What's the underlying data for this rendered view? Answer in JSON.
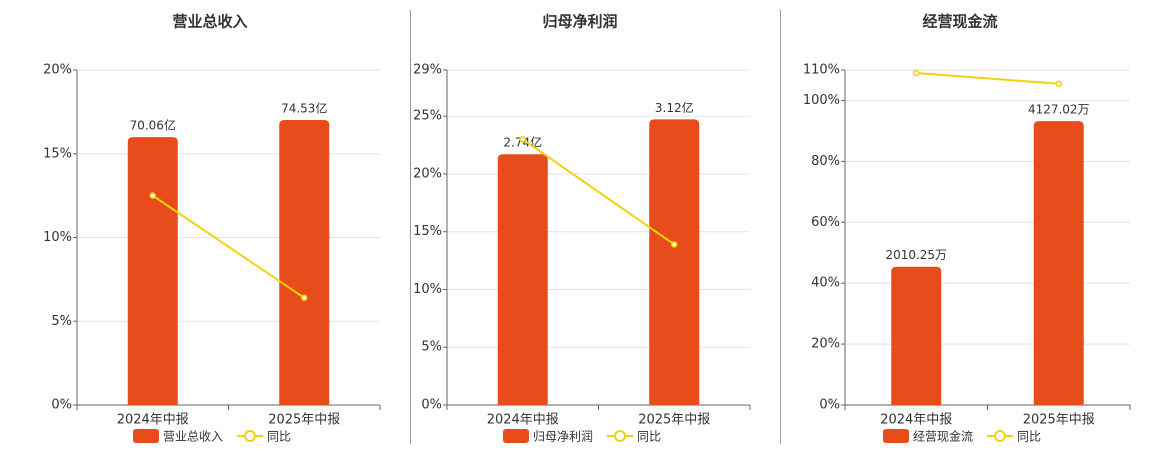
{
  "chart_data": [
    {
      "type": "bar",
      "title": "营业总收入",
      "categories": [
        "2024年中报",
        "2025年中报"
      ],
      "series": [
        {
          "name": "营业总收入",
          "color": "#e84c1a",
          "values": [
            70.06,
            74.53
          ],
          "value_labels": [
            "70.06亿",
            "74.53亿"
          ],
          "axis": "y2"
        },
        {
          "name": "同比",
          "color": "#f2d20a",
          "type": "line",
          "values": [
            12.5,
            6.4
          ]
        }
      ],
      "ylim": [
        0,
        20
      ],
      "yticks": [
        {
          "value": 0,
          "label": "0%"
        },
        {
          "value": 5,
          "label": "5%"
        },
        {
          "value": 10,
          "label": "10%"
        },
        {
          "value": 15,
          "label": "15%"
        },
        {
          "value": 20,
          "label": "20%"
        }
      ],
      "y2lim": [
        0,
        87.6
      ],
      "grid": true
    },
    {
      "type": "bar",
      "title": "归母净利润",
      "categories": [
        "2024年中报",
        "2025年中报"
      ],
      "series": [
        {
          "name": "归母净利润",
          "color": "#e84c1a",
          "values": [
            2.74,
            3.12
          ],
          "value_labels": [
            "2.74亿",
            "3.12亿"
          ],
          "axis": "y2"
        },
        {
          "name": "同比",
          "color": "#f2d20a",
          "type": "line",
          "values": [
            23,
            13.9
          ]
        }
      ],
      "ylim": [
        0,
        29
      ],
      "yticks": [
        {
          "value": 0,
          "label": "0%"
        },
        {
          "value": 5,
          "label": "5%"
        },
        {
          "value": 10,
          "label": "10%"
        },
        {
          "value": 15,
          "label": "15%"
        },
        {
          "value": 20,
          "label": "20%"
        },
        {
          "value": 25,
          "label": "25%"
        },
        {
          "value": 29,
          "label": "29%"
        }
      ],
      "y2lim": [
        0,
        3.66
      ],
      "grid": true
    },
    {
      "type": "bar",
      "title": "经营现金流",
      "categories": [
        "2024年中报",
        "2025年中报"
      ],
      "series": [
        {
          "name": "经营现金流",
          "color": "#e84c1a",
          "values": [
            2010.25,
            4127.02
          ],
          "value_labels": [
            "2010.25万",
            "4127.02万"
          ],
          "axis": "y2"
        },
        {
          "name": "同比",
          "color": "#f2d20a",
          "type": "line",
          "values": [
            109,
            105.5
          ]
        }
      ],
      "ylim": [
        0,
        110
      ],
      "yticks": [
        {
          "value": 0,
          "label": "0%"
        },
        {
          "value": 20,
          "label": "20%"
        },
        {
          "value": 40,
          "label": "40%"
        },
        {
          "value": 60,
          "label": "60%"
        },
        {
          "value": 80,
          "label": "80%"
        },
        {
          "value": 100,
          "label": "100%"
        },
        {
          "value": 110,
          "label": "110%"
        }
      ],
      "y2lim": [
        0,
        4870
      ],
      "grid": true
    }
  ]
}
